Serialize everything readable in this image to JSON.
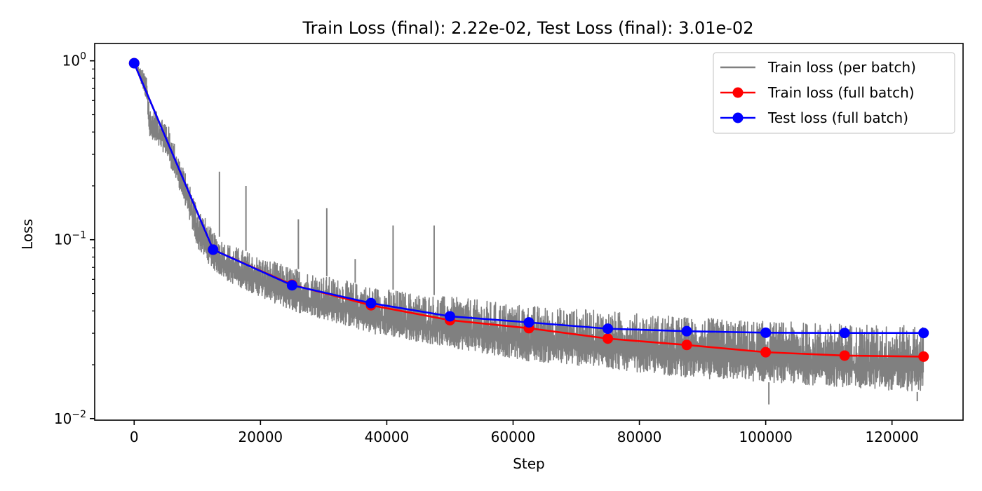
{
  "chart_data": {
    "type": "line",
    "title": "Train Loss (final): 2.22e-02, Test Loss (final): 3.01e-02",
    "xlabel": "Step",
    "ylabel": "Loss",
    "xlim": [
      -6250,
      131250
    ],
    "ylim": [
      0.0098,
      1.25
    ],
    "yscale": "log",
    "grid": false,
    "legend_position": "top-right",
    "x_ticks": [
      0,
      20000,
      40000,
      60000,
      80000,
      100000,
      120000
    ],
    "x_tick_labels": [
      "0",
      "20000",
      "40000",
      "60000",
      "80000",
      "100000",
      "120000"
    ],
    "y_ticks": [
      1,
      0.1,
      0.01
    ],
    "y_tick_labels": [
      {
        "base": "10",
        "exp": "0"
      },
      {
        "base": "10",
        "exp": "−1"
      },
      {
        "base": "10",
        "exp": "−2"
      }
    ],
    "series": [
      {
        "name": "Train loss (per batch)",
        "color": "#808080",
        "style": "noisy-band",
        "x": [
          0,
          2000,
          2500,
          5000,
          8000,
          10000,
          12500,
          15000,
          20000,
          25000,
          30000,
          37500,
          45000,
          50000,
          62500,
          75000,
          87500,
          100000,
          112500,
          125000
        ],
        "upper": [
          0.97,
          0.85,
          0.55,
          0.48,
          0.24,
          0.16,
          0.11,
          0.095,
          0.08,
          0.07,
          0.063,
          0.055,
          0.05,
          0.048,
          0.043,
          0.04,
          0.037,
          0.035,
          0.034,
          0.033
        ],
        "lower": [
          0.97,
          0.6,
          0.36,
          0.3,
          0.16,
          0.09,
          0.068,
          0.058,
          0.048,
          0.04,
          0.036,
          0.03,
          0.027,
          0.025,
          0.021,
          0.019,
          0.017,
          0.016,
          0.015,
          0.014
        ],
        "spikes": [
          {
            "x": 13500,
            "y": 0.24
          },
          {
            "x": 17700,
            "y": 0.2
          },
          {
            "x": 26000,
            "y": 0.13
          },
          {
            "x": 30500,
            "y": 0.15
          },
          {
            "x": 41000,
            "y": 0.12
          },
          {
            "x": 47500,
            "y": 0.12
          },
          {
            "x": 35000,
            "y": 0.078
          }
        ],
        "dips": [
          {
            "x": 100500,
            "y": 0.012
          },
          {
            "x": 124000,
            "y": 0.0125
          }
        ]
      },
      {
        "name": "Train loss (full batch)",
        "color": "#ff0000",
        "x": [
          0,
          12500,
          25000,
          37500,
          50000,
          62500,
          75000,
          87500,
          100000,
          112500,
          125000
        ],
        "values": [
          0.97,
          0.088,
          0.056,
          0.043,
          0.0355,
          0.032,
          0.028,
          0.0258,
          0.0235,
          0.0225,
          0.0222
        ]
      },
      {
        "name": "Test loss (full batch)",
        "color": "#0000ff",
        "x": [
          0,
          12500,
          25000,
          37500,
          50000,
          62500,
          75000,
          87500,
          100000,
          112500,
          125000
        ],
        "values": [
          0.97,
          0.088,
          0.0556,
          0.0442,
          0.0373,
          0.0345,
          0.0318,
          0.0308,
          0.0302,
          0.0301,
          0.0301
        ]
      }
    ]
  }
}
